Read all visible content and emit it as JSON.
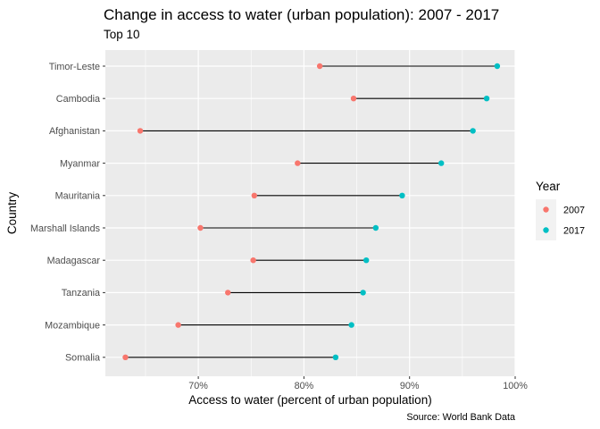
{
  "chart_data": {
    "type": "dumbbell",
    "title": "Change in access to water (urban population): 2007 - 2017",
    "subtitle": "Top 10",
    "xlabel": "Access to water (percent of urban population)",
    "ylabel": "Country",
    "caption": "Source: World Bank Data",
    "xlim": [
      61.2,
      100
    ],
    "x_ticks": [
      {
        "value": 70,
        "label": "70%"
      },
      {
        "value": 80,
        "label": "80%"
      },
      {
        "value": 90,
        "label": "90%"
      },
      {
        "value": 100,
        "label": "100%"
      }
    ],
    "grid": true,
    "legend": {
      "title": "Year",
      "position": "right",
      "entries": [
        {
          "label": "2007",
          "color": "#F8766D"
        },
        {
          "label": "2017",
          "color": "#00BFC4"
        }
      ]
    },
    "categories": [
      "Timor-Leste",
      "Cambodia",
      "Afghanistan",
      "Myanmar",
      "Mauritania",
      "Marshall Islands",
      "Madagascar",
      "Tanzania",
      "Mozambique",
      "Somalia"
    ],
    "series": [
      {
        "name": "2007",
        "color": "#F8766D",
        "values": [
          81.5,
          84.7,
          64.5,
          79.4,
          75.3,
          70.2,
          75.2,
          72.8,
          68.1,
          63.1
        ]
      },
      {
        "name": "2017",
        "color": "#00BFC4",
        "values": [
          98.3,
          97.3,
          96.0,
          93.0,
          89.3,
          86.8,
          85.9,
          85.6,
          84.5,
          83.0
        ]
      }
    ]
  }
}
